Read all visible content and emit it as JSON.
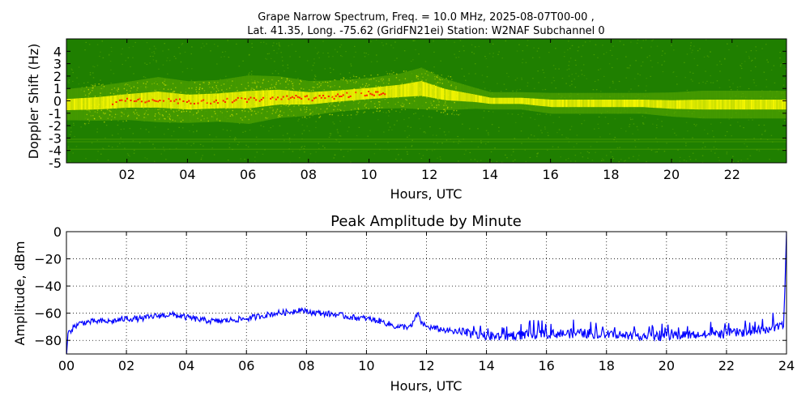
{
  "figure": {
    "title_line1": "Grape Narrow Spectrum, Freq. = 10.0 MHz, 2025-08-07T00-00 ,",
    "title_line2": "Lat.  41.35, Long. -75.62 (GridFN21ei) Station: W2NAF Subchannel 0"
  },
  "chart_data": [
    {
      "type": "heatmap",
      "title": "",
      "xlabel": "Hours, UTC",
      "ylabel": "Doppler Shift (Hz)",
      "xlim": [
        0,
        23.8
      ],
      "ylim": [
        -5,
        5
      ],
      "x_ticks": [
        2,
        4,
        6,
        8,
        10,
        12,
        14,
        16,
        18,
        20,
        22
      ],
      "x_tick_labels": [
        "02",
        "04",
        "06",
        "08",
        "10",
        "12",
        "14",
        "16",
        "18",
        "20",
        "22"
      ],
      "y_ticks": [
        4,
        3,
        2,
        1,
        0,
        -1,
        -2,
        -3,
        -4,
        -5
      ],
      "y_tick_labels": [
        "4",
        "3",
        "2",
        "1",
        "0",
        "-1",
        "-2",
        "-3",
        "-4",
        "-5"
      ],
      "grid": false,
      "colors": {
        "background": "#1f7f00",
        "noise": "#5aa800",
        "signal": "#f6f600",
        "peak": "#ff2a00"
      },
      "ridge": {
        "hours": [
          0,
          1,
          2,
          3,
          4,
          5,
          6,
          7,
          8,
          9,
          10,
          11,
          11.7,
          12.5,
          13.5,
          14,
          15,
          16,
          17,
          18,
          19,
          20,
          21,
          22,
          23,
          23.8
        ],
        "doppler_hz": [
          -0.3,
          -0.2,
          0.0,
          0.1,
          -0.1,
          0.0,
          0.1,
          0.3,
          0.2,
          0.4,
          0.6,
          0.8,
          1.0,
          0.5,
          0.2,
          0.0,
          0.0,
          -0.2,
          -0.2,
          -0.2,
          -0.2,
          -0.3,
          -0.3,
          -0.3,
          -0.3,
          -0.3
        ],
        "width_hz": [
          0.9,
          1.0,
          1.1,
          1.3,
          1.2,
          1.2,
          1.4,
          1.2,
          1.0,
          0.9,
          0.9,
          1.0,
          1.2,
          0.9,
          0.6,
          0.5,
          0.5,
          0.6,
          0.6,
          0.6,
          0.6,
          0.7,
          0.8,
          0.8,
          0.8,
          0.8
        ]
      }
    },
    {
      "type": "line",
      "title": "Peak Amplitude by Minute",
      "xlabel": "Hours, UTC",
      "ylabel": "Amplitude, dBm",
      "xlim": [
        0,
        24
      ],
      "ylim": [
        -90,
        0
      ],
      "x_ticks": [
        0,
        2,
        4,
        6,
        8,
        10,
        12,
        14,
        16,
        18,
        20,
        22,
        24
      ],
      "x_tick_labels": [
        "00",
        "02",
        "04",
        "06",
        "08",
        "10",
        "12",
        "14",
        "16",
        "18",
        "20",
        "22",
        "24"
      ],
      "y_ticks": [
        0,
        -20,
        -40,
        -60,
        -80
      ],
      "y_tick_labels": [
        "0",
        "−20",
        "−40",
        "−60",
        "−80"
      ],
      "grid": true,
      "color": "#0000ff",
      "series": [
        {
          "x": [
            0,
            0.05,
            0.25,
            0.5,
            1,
            1.5,
            2,
            2.5,
            3,
            3.5,
            4,
            4.5,
            5,
            5.5,
            6,
            6.5,
            7,
            7.5,
            7.8,
            8,
            8.5,
            9,
            9.5,
            10,
            10.5,
            11,
            11.5,
            11.7,
            11.8,
            12,
            12.5,
            13,
            13.5,
            14,
            14.5,
            15,
            15.5,
            16,
            16.5,
            17,
            17.5,
            18,
            18.5,
            19,
            19.5,
            20,
            20.5,
            21,
            21.5,
            22,
            22.5,
            23,
            23.5,
            23.9,
            23.95,
            24
          ],
          "y": [
            -92,
            -75,
            -70,
            -67,
            -66,
            -66,
            -64,
            -64,
            -62,
            -61,
            -63,
            -65,
            -66,
            -65,
            -64,
            -62,
            -60,
            -59,
            -57,
            -59,
            -60,
            -61,
            -63,
            -64,
            -66,
            -70,
            -70,
            -60,
            -66,
            -70,
            -72,
            -74,
            -75,
            -77,
            -77,
            -76,
            -76,
            -75,
            -75,
            -75,
            -75,
            -76,
            -76,
            -76,
            -77,
            -77,
            -76,
            -76,
            -76,
            -75,
            -74,
            -73,
            -71,
            -70,
            -40,
            0
          ]
        }
      ]
    }
  ]
}
